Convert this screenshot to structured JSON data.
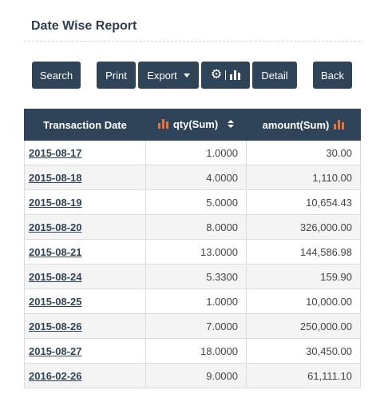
{
  "page": {
    "title": "Date Wise Report"
  },
  "toolbar": {
    "search_label": "Search",
    "print_label": "Print",
    "export_label": "Export",
    "detail_label": "Detail",
    "back_label": "Back"
  },
  "table": {
    "headers": [
      "Transaction Date",
      "qty(Sum)",
      "amount(Sum)"
    ],
    "rows": [
      {
        "date": "2015-08-17",
        "qty": "1.0000",
        "amount": "30.00"
      },
      {
        "date": "2015-08-18",
        "qty": "4.0000",
        "amount": "1,110.00"
      },
      {
        "date": "2015-08-19",
        "qty": "5.0000",
        "amount": "10,654.43"
      },
      {
        "date": "2015-08-20",
        "qty": "8.0000",
        "amount": "326,000.00"
      },
      {
        "date": "2015-08-21",
        "qty": "13.0000",
        "amount": "144,586.98"
      },
      {
        "date": "2015-08-24",
        "qty": "5.3300",
        "amount": "159.90"
      },
      {
        "date": "2015-08-25",
        "qty": "1.0000",
        "amount": "10,000.00"
      },
      {
        "date": "2015-08-26",
        "qty": "7.0000",
        "amount": "250,000.00"
      },
      {
        "date": "2015-08-27",
        "qty": "18.0000",
        "amount": "30,450.00"
      },
      {
        "date": "2016-02-26",
        "qty": "9.0000",
        "amount": "61,111.10"
      }
    ]
  },
  "colors": {
    "header_bg": "#2f4458",
    "accent": "#e8743b"
  },
  "icons": [
    "caret-down-icon",
    "gear-icon",
    "bar-chart-icon",
    "sort-icon"
  ]
}
